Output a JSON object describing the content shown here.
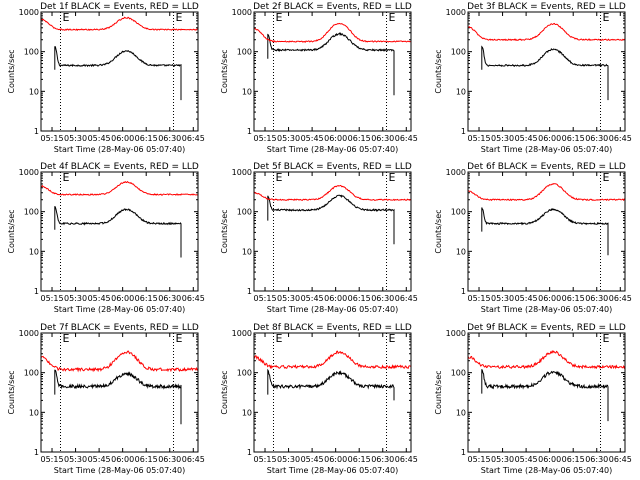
{
  "figure": {
    "colors": {
      "events": "#000000",
      "lld": "#ff0000",
      "background": "#ffffff",
      "axes": "#000000"
    }
  },
  "chart_data": [
    {
      "type": "line",
      "detector": "Det 1f",
      "title": "Det 1f BLACK = Events, RED = LLD",
      "xlabel": "Start Time (28-May-06 05:07:40)",
      "ylabel": "Counts/sec",
      "xlim": [
        5.133,
        6.8
      ],
      "ylim": [
        1,
        1000
      ],
      "yscale": "log",
      "x_ticks": [
        "05:15",
        "05:30",
        "05:45",
        "06:00",
        "06:15",
        "06:30",
        "06:45"
      ],
      "y_ticks": [
        "1",
        "10",
        "100",
        "1000"
      ],
      "markers": [
        {
          "time": 5.34,
          "label": "E"
        },
        {
          "time": 6.54,
          "label": "E"
        }
      ],
      "series": [
        {
          "name": "Events",
          "color": "#000000",
          "start": 5.28,
          "end": 6.62,
          "base": 45,
          "peak": 105,
          "peak_time": 6.04,
          "peak_width": 0.13,
          "noise": 0.02,
          "spike": 100,
          "end_drop": 6
        },
        {
          "name": "LLD",
          "color": "#ff0000",
          "start": 5.133,
          "end": 6.8,
          "base": 360,
          "peak": 720,
          "peak_time": 6.04,
          "peak_width": 0.13,
          "noise": 0.015,
          "left_level": 650,
          "left_width": 0.1
        }
      ]
    },
    {
      "type": "line",
      "detector": "Det 2f",
      "title": "Det 2f BLACK = Events, RED = LLD",
      "xlabel": "Start Time (28-May-06 05:07:40)",
      "ylabel": "Counts/sec",
      "xlim": [
        5.133,
        6.8
      ],
      "ylim": [
        1,
        1000
      ],
      "yscale": "log",
      "x_ticks": [
        "05:15",
        "05:30",
        "05:45",
        "06:00",
        "06:15",
        "06:30",
        "06:45"
      ],
      "y_ticks": [
        "1",
        "10",
        "100",
        "1000"
      ],
      "markers": [
        {
          "time": 5.34,
          "label": "E"
        },
        {
          "time": 6.54,
          "label": "E"
        }
      ],
      "series": [
        {
          "name": "Events",
          "color": "#000000",
          "start": 5.28,
          "end": 6.62,
          "base": 110,
          "peak": 280,
          "peak_time": 6.04,
          "peak_width": 0.13,
          "noise": 0.02,
          "spike": 190,
          "end_drop": 8
        },
        {
          "name": "LLD",
          "color": "#ff0000",
          "start": 5.133,
          "end": 6.8,
          "base": 180,
          "peak": 520,
          "peak_time": 6.04,
          "peak_width": 0.13,
          "noise": 0.015,
          "left_level": 380,
          "left_width": 0.1
        }
      ]
    },
    {
      "type": "line",
      "detector": "Det 3f",
      "title": "Det 3f BLACK = Events, RED = LLD",
      "xlabel": "Start Time (28-May-06 05:07:40)",
      "ylabel": "Counts/sec",
      "xlim": [
        5.133,
        6.8
      ],
      "ylim": [
        1,
        1000
      ],
      "yscale": "log",
      "x_ticks": [
        "05:15",
        "05:30",
        "05:45",
        "06:00",
        "06:15",
        "06:30",
        "06:45"
      ],
      "y_ticks": [
        "1",
        "10",
        "100",
        "1000"
      ],
      "markers": [
        {
          "time": 6.54,
          "label": "E"
        }
      ],
      "series": [
        {
          "name": "Events",
          "color": "#000000",
          "start": 5.28,
          "end": 6.62,
          "base": 45,
          "peak": 115,
          "peak_time": 6.04,
          "peak_width": 0.13,
          "noise": 0.02,
          "spike": 100,
          "end_drop": 6
        },
        {
          "name": "LLD",
          "color": "#ff0000",
          "start": 5.133,
          "end": 6.8,
          "base": 200,
          "peak": 500,
          "peak_time": 6.04,
          "peak_width": 0.13,
          "noise": 0.015,
          "left_level": 420,
          "left_width": 0.1
        }
      ]
    },
    {
      "type": "line",
      "detector": "Det 4f",
      "title": "Det 4f BLACK = Events, RED = LLD",
      "xlabel": "Start Time (28-May-06 05:07:40)",
      "ylabel": "Counts/sec",
      "xlim": [
        5.133,
        6.8
      ],
      "ylim": [
        1,
        1000
      ],
      "yscale": "log",
      "x_ticks": [
        "05:15",
        "05:30",
        "05:45",
        "06:00",
        "06:15",
        "06:30",
        "06:45"
      ],
      "y_ticks": [
        "1",
        "10",
        "100",
        "1000"
      ],
      "markers": [
        {
          "time": 5.34,
          "label": "E"
        }
      ],
      "series": [
        {
          "name": "Events",
          "color": "#000000",
          "start": 5.28,
          "end": 6.62,
          "base": 50,
          "peak": 115,
          "peak_time": 6.04,
          "peak_width": 0.13,
          "noise": 0.02,
          "spike": 100,
          "end_drop": 7
        },
        {
          "name": "LLD",
          "color": "#ff0000",
          "start": 5.133,
          "end": 6.8,
          "base": 270,
          "peak": 560,
          "peak_time": 6.04,
          "peak_width": 0.13,
          "noise": 0.015,
          "left_level": 440,
          "left_width": 0.1
        }
      ]
    },
    {
      "type": "line",
      "detector": "Det 5f",
      "title": "Det 5f BLACK = Events, RED = LLD",
      "xlabel": "Start Time (28-May-06 05:07:40)",
      "ylabel": "Counts/sec",
      "xlim": [
        5.133,
        6.8
      ],
      "ylim": [
        1,
        1000
      ],
      "yscale": "log",
      "x_ticks": [
        "05:15",
        "05:30",
        "05:45",
        "06:00",
        "06:15",
        "06:30",
        "06:45"
      ],
      "y_ticks": [
        "1",
        "10",
        "100",
        "1000"
      ],
      "markers": [
        {
          "time": 5.34,
          "label": "E"
        },
        {
          "time": 6.54,
          "label": "E"
        }
      ],
      "series": [
        {
          "name": "Events",
          "color": "#000000",
          "start": 5.28,
          "end": 6.62,
          "base": 110,
          "peak": 250,
          "peak_time": 6.04,
          "peak_width": 0.13,
          "noise": 0.02,
          "spike": 170,
          "end_drop": 15
        },
        {
          "name": "LLD",
          "color": "#ff0000",
          "start": 5.133,
          "end": 6.8,
          "base": 200,
          "peak": 450,
          "peak_time": 6.04,
          "peak_width": 0.13,
          "noise": 0.015,
          "left_level": 300,
          "left_width": 0.1
        }
      ]
    },
    {
      "type": "line",
      "detector": "Det 6f",
      "title": "Det 6f BLACK = Events, RED = LLD",
      "xlabel": "Start Time (28-May-06 05:07:40)",
      "ylabel": "Counts/sec",
      "xlim": [
        5.133,
        6.8
      ],
      "ylim": [
        1,
        1000
      ],
      "yscale": "log",
      "x_ticks": [
        "05:15",
        "05:30",
        "05:45",
        "06:00",
        "06:15",
        "06:30",
        "06:45"
      ],
      "y_ticks": [
        "1",
        "10",
        "100",
        "1000"
      ],
      "markers": [
        {
          "time": 6.54,
          "label": "E"
        }
      ],
      "series": [
        {
          "name": "Events",
          "color": "#000000",
          "start": 5.28,
          "end": 6.62,
          "base": 50,
          "peak": 115,
          "peak_time": 6.04,
          "peak_width": 0.13,
          "noise": 0.02,
          "spike": 90,
          "end_drop": 8
        },
        {
          "name": "LLD",
          "color": "#ff0000",
          "start": 5.133,
          "end": 6.8,
          "base": 200,
          "peak": 500,
          "peak_time": 6.04,
          "peak_width": 0.13,
          "noise": 0.015,
          "left_level": 330,
          "left_width": 0.1
        }
      ]
    },
    {
      "type": "line",
      "detector": "Det 7f",
      "title": "Det 7f BLACK = Events, RED = LLD",
      "xlabel": "Start Time (28-May-06 05:07:40)",
      "ylabel": "Counts/sec",
      "xlim": [
        5.133,
        6.8
      ],
      "ylim": [
        1,
        1000
      ],
      "yscale": "log",
      "x_ticks": [
        "05:15",
        "05:30",
        "05:45",
        "06:00",
        "06:15",
        "06:30",
        "06:45"
      ],
      "y_ticks": [
        "1",
        "10",
        "100",
        "1000"
      ],
      "markers": [
        {
          "time": 5.34,
          "label": "E"
        },
        {
          "time": 6.54,
          "label": "E"
        }
      ],
      "series": [
        {
          "name": "Events",
          "color": "#000000",
          "start": 5.28,
          "end": 6.62,
          "base": 45,
          "peak": 95,
          "peak_time": 6.04,
          "peak_width": 0.13,
          "noise": 0.04,
          "spike": 80,
          "end_drop": 5
        },
        {
          "name": "LLD",
          "color": "#ff0000",
          "start": 5.133,
          "end": 6.8,
          "base": 120,
          "peak": 330,
          "peak_time": 6.04,
          "peak_width": 0.13,
          "noise": 0.035,
          "left_level": 250,
          "left_width": 0.1
        }
      ]
    },
    {
      "type": "line",
      "detector": "Det 8f",
      "title": "Det 8f BLACK = Events, RED = LLD",
      "xlabel": "Start Time (28-May-06 05:07:40)",
      "ylabel": "Counts/sec",
      "xlim": [
        5.133,
        6.8
      ],
      "ylim": [
        1,
        1000
      ],
      "yscale": "log",
      "x_ticks": [
        "05:15",
        "05:30",
        "05:45",
        "06:00",
        "06:15",
        "06:30",
        "06:45"
      ],
      "y_ticks": [
        "1",
        "10",
        "100",
        "1000"
      ],
      "markers": [
        {
          "time": 5.34,
          "label": "E"
        },
        {
          "time": 6.54,
          "label": "E"
        }
      ],
      "series": [
        {
          "name": "Events",
          "color": "#000000",
          "start": 5.28,
          "end": 6.62,
          "base": 45,
          "peak": 100,
          "peak_time": 6.04,
          "peak_width": 0.13,
          "noise": 0.04,
          "spike": 80,
          "end_drop": 20
        },
        {
          "name": "LLD",
          "color": "#ff0000",
          "start": 5.133,
          "end": 6.8,
          "base": 140,
          "peak": 330,
          "peak_time": 6.04,
          "peak_width": 0.13,
          "noise": 0.035,
          "left_level": 250,
          "left_width": 0.1
        }
      ]
    },
    {
      "type": "line",
      "detector": "Det 9f",
      "title": "Det 9f BLACK = Events, RED = LLD",
      "xlabel": "Start Time (28-May-06 05:07:40)",
      "ylabel": "Counts/sec",
      "xlim": [
        5.133,
        6.8
      ],
      "ylim": [
        1,
        1000
      ],
      "yscale": "log",
      "x_ticks": [
        "05:15",
        "05:30",
        "05:45",
        "06:00",
        "06:15",
        "06:30",
        "06:45"
      ],
      "y_ticks": [
        "1",
        "10",
        "100",
        "1000"
      ],
      "markers": [
        {
          "time": 6.54,
          "label": "E"
        }
      ],
      "series": [
        {
          "name": "Events",
          "color": "#000000",
          "start": 5.28,
          "end": 6.62,
          "base": 45,
          "peak": 105,
          "peak_time": 6.04,
          "peak_width": 0.13,
          "noise": 0.04,
          "spike": 85,
          "end_drop": 6
        },
        {
          "name": "LLD",
          "color": "#ff0000",
          "start": 5.133,
          "end": 6.8,
          "base": 140,
          "peak": 330,
          "peak_time": 6.04,
          "peak_width": 0.13,
          "noise": 0.035,
          "left_level": 250,
          "left_width": 0.1
        }
      ]
    }
  ]
}
